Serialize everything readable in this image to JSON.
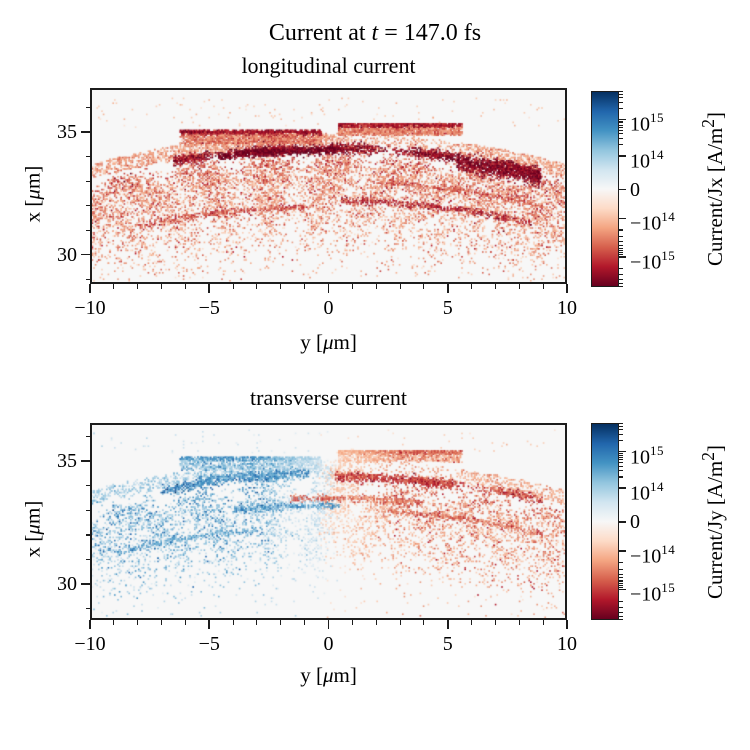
{
  "figure": {
    "suptitle": {
      "pre": "Current at ",
      "var": "t",
      "post": " = 147.0 fs"
    }
  },
  "chart_data": {
    "type": "scatter",
    "description": "Particle-in-cell simulation currents at t = 147.0 fs. Two panels of a dome of layered arc-shaped particle bands between x = 29 and 36 um over y = -10..10 um. Top panel: longitudinal current Jx, all negative (red shades). Bottom panel: transverse current Jy, positive (blue) for y < 0 and negative (red/orange) for y > 0. Color scale is symmetric log (symlog), RdBu colormap, range about -6e15 .. 6e15 A/m^2.",
    "background_value_color": "#f7f7f7",
    "seed": 42,
    "palettes": {
      "red": [
        "#fcd7c2",
        "#fac0a1",
        "#f4a582",
        "#e78a6b",
        "#d6604d",
        "#c6413e",
        "#b2182b",
        "#8f0a26",
        "#67001f"
      ],
      "blue": [
        "#d7e8f1",
        "#bcd9ea",
        "#9ecae1",
        "#7db8d8",
        "#4393c3",
        "#3079b6",
        "#2166ac",
        "#15508d",
        "#053061"
      ]
    },
    "colormap_stops": [
      [
        0,
        "#053061"
      ],
      [
        10,
        "#2166ac"
      ],
      [
        20,
        "#4393c3"
      ],
      [
        30,
        "#92c5de"
      ],
      [
        40,
        "#d1e5f0"
      ],
      [
        50,
        "#f7f7f7"
      ],
      [
        60,
        "#fddbc7"
      ],
      [
        70,
        "#f4a582"
      ],
      [
        80,
        "#d6604d"
      ],
      [
        90,
        "#b2182b"
      ],
      [
        100,
        "#67001f"
      ]
    ],
    "subplots": [
      {
        "title": "longitudinal current",
        "xlabel": {
          "pre": "y [",
          "mu": "μ",
          "post": "m]"
        },
        "ylabel": {
          "pre": "x [",
          "mu": "μ",
          "post": "m]"
        },
        "xlim": [
          -10,
          10
        ],
        "ylim": [
          28.8,
          36.8
        ],
        "xticks": {
          "major": [
            {
              "value": -10,
              "label": "−10"
            },
            {
              "value": -5,
              "label": "−5"
            },
            {
              "value": 0,
              "label": "0"
            },
            {
              "value": 5,
              "label": "5"
            },
            {
              "value": 10,
              "label": "10"
            }
          ],
          "minor_values": [
            -9,
            -8,
            -7,
            -6,
            -4,
            -3,
            -2,
            -1,
            1,
            2,
            3,
            4,
            6,
            7,
            8,
            9
          ]
        },
        "yticks": {
          "major": [
            {
              "value": 35,
              "label": "35"
            },
            {
              "value": 30,
              "label": "30"
            }
          ],
          "minor_values": [
            29,
            31,
            32,
            33,
            34,
            36
          ]
        },
        "colorbar": {
          "label": {
            "pre": "Current/Jx [A/m",
            "sup": "2",
            "post": "]"
          },
          "ticks": [
            {
              "base": "10",
              "exp": "15",
              "frac": 0.145
            },
            {
              "base": "10",
              "exp": "14",
              "frac": 0.33
            },
            {
              "base": "0",
              "exp": "",
              "frac": 0.503
            },
            {
              "base": "−10",
              "exp": "14",
              "frac": 0.65
            },
            {
              "base": "−10",
              "exp": "15",
              "frac": 0.845
            }
          ],
          "minor_fracs": [
            0.274,
            0.242,
            0.219,
            0.201,
            0.186,
            0.174,
            0.163,
            0.154,
            0.089,
            0.057,
            0.034,
            0.016,
            0.001,
            0.709,
            0.743,
            0.767,
            0.786,
            0.802,
            0.815,
            0.826,
            0.836,
            0.904,
            0.938,
            0.962,
            0.981,
            0.997
          ]
        },
        "field": {
          "palette": "red",
          "side_split": false,
          "curvature": 80,
          "crown": {
            "x_lo": 34.35,
            "x_hi": 34.95,
            "n": 2400,
            "dark": 0.33,
            "thin_ranges": [
              [
                0.5,
                5.6
              ]
            ]
          },
          "bands": [
            {
              "x": 34.33,
              "th": 0.1,
              "y": [
                -6.5,
                8.9
              ],
              "n": 3000,
              "dark": 0.82
            },
            {
              "x": 33.8,
              "th": 0.22,
              "y": [
                -10,
                10
              ],
              "n": 2500,
              "dark": 0.46
            },
            {
              "x": 33.25,
              "th": 0.25,
              "y": [
                -10,
                10
              ],
              "n": 2200,
              "dark": 0.42
            },
            {
              "x": 32.6,
              "th": 0.28,
              "y": [
                -10,
                10
              ],
              "n": 2000,
              "dark": 0.4
            },
            {
              "x": 31.95,
              "th": 0.32,
              "y": [
                -10,
                10
              ],
              "n": 1600,
              "dark": 0.36
            },
            {
              "x": 31.25,
              "th": 0.42,
              "y": [
                -10,
                10
              ],
              "n": 1100,
              "dark": 0.32
            },
            {
              "x": 30.5,
              "th": 0.55,
              "y": [
                -9,
                9
              ],
              "n": 750,
              "dark": 0.3
            }
          ],
          "streaks": [
            {
              "x": 34.26,
              "th": 0.08,
              "y": [
                -4.6,
                0.3
              ],
              "n": 650,
              "dark": 0.92
            },
            {
              "x": 34.1,
              "th": 0.16,
              "y": [
                5.4,
                8.9
              ],
              "n": 800,
              "dark": 0.85
            },
            {
              "x": 32.2,
              "th": 0.07,
              "y": [
                0.5,
                8.5
              ],
              "n": 450,
              "dark": 0.72
            },
            {
              "x": 31.95,
              "th": 0.07,
              "y": [
                -8,
                -1
              ],
              "n": 320,
              "dark": 0.6
            },
            {
              "x": 33.0,
              "th": 0.06,
              "y": [
                2,
                9
              ],
              "n": 300,
              "dark": 0.55
            }
          ],
          "plateaus": [
            {
              "y": [
                -6.2,
                -0.3
              ],
              "top": 35.05,
              "depth": 0.55,
              "n": 1600,
              "dark": 0.42,
              "outline": 0.78
            },
            {
              "y": [
                0.4,
                5.6
              ],
              "top": 35.33,
              "depth": 0.45,
              "n": 1500,
              "dark": 0.4,
              "outline": 0.74
            }
          ],
          "speckle": {
            "x_top": 33.6,
            "reach": 1.9,
            "n": 2600,
            "dark": 0.26
          },
          "dust": {
            "x": [
              35.2,
              36.4
            ],
            "n": 120,
            "dark": 0.18
          }
        }
      },
      {
        "title": "transverse current",
        "xlabel": {
          "pre": "y [",
          "mu": "μ",
          "post": "m]"
        },
        "ylabel": {
          "pre": "x [",
          "mu": "μ",
          "post": "m]"
        },
        "xlim": [
          -10,
          10
        ],
        "ylim": [
          28.55,
          36.55
        ],
        "xticks": {
          "major": [
            {
              "value": -10,
              "label": "−10"
            },
            {
              "value": -5,
              "label": "−5"
            },
            {
              "value": 0,
              "label": "0"
            },
            {
              "value": 5,
              "label": "5"
            },
            {
              "value": 10,
              "label": "10"
            }
          ],
          "minor_values": [
            -9,
            -8,
            -7,
            -6,
            -4,
            -3,
            -2,
            -1,
            1,
            2,
            3,
            4,
            6,
            7,
            8,
            9
          ]
        },
        "yticks": {
          "major": [
            {
              "value": 35,
              "label": "35"
            },
            {
              "value": 30,
              "label": "30"
            }
          ],
          "minor_values": [
            29,
            31,
            32,
            33,
            34,
            36
          ]
        },
        "colorbar": {
          "label": {
            "pre": "Current/Jy [A/m",
            "sup": "2",
            "post": "]"
          },
          "ticks": [
            {
              "base": "10",
              "exp": "15",
              "frac": 0.145
            },
            {
              "base": "10",
              "exp": "14",
              "frac": 0.33
            },
            {
              "base": "0",
              "exp": "",
              "frac": 0.503
            },
            {
              "base": "−10",
              "exp": "14",
              "frac": 0.65
            },
            {
              "base": "−10",
              "exp": "15",
              "frac": 0.845
            }
          ],
          "minor_fracs": [
            0.274,
            0.242,
            0.219,
            0.201,
            0.186,
            0.174,
            0.163,
            0.154,
            0.089,
            0.057,
            0.034,
            0.016,
            0.001,
            0.709,
            0.743,
            0.767,
            0.786,
            0.802,
            0.815,
            0.826,
            0.836,
            0.904,
            0.938,
            0.962,
            0.981,
            0.997
          ]
        },
        "field": {
          "palette": "red",
          "side_split": true,
          "curvature": 80,
          "crown": {
            "x_lo": 34.45,
            "x_hi": 35.05,
            "n": 1500,
            "dark": 0.3,
            "thin_ranges": [
              [
                0.5,
                5.6
              ]
            ]
          },
          "bands": [
            {
              "x": 34.42,
              "th": 0.1,
              "y": [
                -7,
                9
              ],
              "n": 1800,
              "dark": 0.55
            },
            {
              "x": 33.9,
              "th": 0.22,
              "y": [
                -10,
                10
              ],
              "n": 1500,
              "dark": 0.4
            },
            {
              "x": 33.3,
              "th": 0.25,
              "y": [
                -10,
                10
              ],
              "n": 1400,
              "dark": 0.38
            },
            {
              "x": 32.65,
              "th": 0.3,
              "y": [
                -10,
                10
              ],
              "n": 1200,
              "dark": 0.35
            },
            {
              "x": 31.95,
              "th": 0.35,
              "y": [
                -10,
                10
              ],
              "n": 950,
              "dark": 0.33
            },
            {
              "x": 31.25,
              "th": 0.45,
              "y": [
                -9.5,
                9.5
              ],
              "n": 700,
              "dark": 0.3
            }
          ],
          "streaks": [
            {
              "x": 34.35,
              "th": 0.1,
              "y": [
                0.3,
                5.2
              ],
              "n": 450,
              "dark": 0.62,
              "side": "red"
            },
            {
              "x": 34.55,
              "th": 0.1,
              "y": [
                -5.5,
                -0.8
              ],
              "n": 350,
              "dark": 0.5,
              "side": "blue"
            },
            {
              "x": 33.5,
              "th": 0.07,
              "y": [
                -1.6,
                4.0
              ],
              "n": 350,
              "dark": 0.5,
              "side": "red"
            },
            {
              "x": 33.2,
              "th": 0.07,
              "y": [
                -4.0,
                0.5
              ],
              "n": 300,
              "dark": 0.5,
              "side": "blue"
            },
            {
              "x": 33.05,
              "th": 0.06,
              "y": [
                2.5,
                9.0
              ],
              "n": 300,
              "dark": 0.5,
              "side": "red"
            },
            {
              "x": 32.3,
              "th": 0.07,
              "y": [
                -9.0,
                -3.0
              ],
              "n": 250,
              "dark": 0.45,
              "side": "blue"
            }
          ],
          "plateaus": [
            {
              "y": [
                -6.2,
                -0.3
              ],
              "top": 35.15,
              "depth": 0.5,
              "n": 800,
              "dark": 0.32,
              "outline": 0.5
            },
            {
              "y": [
                0.4,
                5.6
              ],
              "top": 35.42,
              "depth": 0.45,
              "n": 800,
              "dark": 0.32,
              "outline": 0.5
            }
          ],
          "speckle": {
            "x_top": 33.6,
            "reach": 2.1,
            "n": 2200,
            "dark": 0.24
          },
          "dust": {
            "x": [
              35.3,
              36.3
            ],
            "n": 80,
            "dark": 0.16
          }
        }
      }
    ]
  }
}
